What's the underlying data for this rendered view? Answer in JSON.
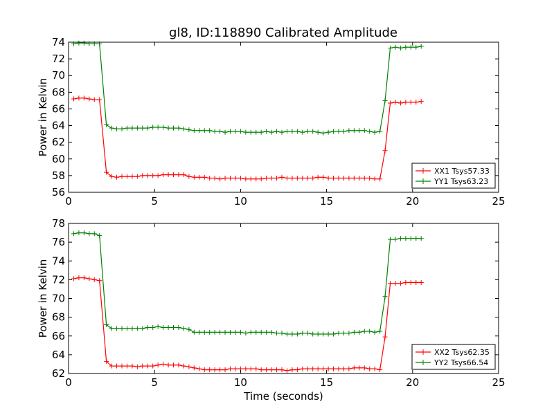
{
  "figure": {
    "title": "gl8, ID:118890 Calibrated Amplitude"
  },
  "chart_data": [
    {
      "type": "line",
      "title": "gl8, ID:118890 Calibrated Amplitude",
      "xlabel": "",
      "ylabel": "Power in Kelvin",
      "xlim": [
        0,
        25
      ],
      "ylim": [
        56,
        74
      ],
      "xticks": [
        0,
        5,
        10,
        15,
        20,
        25
      ],
      "yticks": [
        56,
        58,
        60,
        62,
        64,
        66,
        68,
        70,
        72,
        74
      ],
      "grid": false,
      "legend_position": "lower-right",
      "x": [
        0.3,
        0.6,
        0.9,
        1.2,
        1.5,
        1.8,
        2.2,
        2.5,
        2.8,
        3.1,
        3.4,
        3.7,
        4.0,
        4.3,
        4.6,
        4.9,
        5.2,
        5.5,
        5.8,
        6.1,
        6.4,
        6.7,
        7.0,
        7.3,
        7.6,
        7.9,
        8.2,
        8.5,
        8.8,
        9.1,
        9.4,
        9.7,
        10.0,
        10.3,
        10.6,
        10.9,
        11.2,
        11.5,
        11.8,
        12.1,
        12.4,
        12.7,
        13.0,
        13.3,
        13.6,
        13.9,
        14.2,
        14.5,
        14.8,
        15.1,
        15.4,
        15.7,
        16.0,
        16.3,
        16.6,
        16.9,
        17.2,
        17.5,
        17.8,
        18.1,
        18.4,
        18.7,
        19.0,
        19.3,
        19.6,
        19.9,
        20.2,
        20.5
      ],
      "series": [
        {
          "name": "XX1 Tsys57.33",
          "color": "#ff0000",
          "values": [
            67.2,
            67.3,
            67.3,
            67.2,
            67.1,
            67.1,
            58.4,
            57.9,
            57.8,
            57.9,
            57.9,
            57.9,
            57.9,
            58.0,
            58.0,
            58.0,
            58.0,
            58.1,
            58.1,
            58.1,
            58.1,
            58.1,
            57.9,
            57.8,
            57.8,
            57.8,
            57.7,
            57.7,
            57.6,
            57.7,
            57.7,
            57.7,
            57.7,
            57.6,
            57.6,
            57.6,
            57.6,
            57.7,
            57.7,
            57.7,
            57.8,
            57.7,
            57.7,
            57.7,
            57.7,
            57.7,
            57.7,
            57.8,
            57.8,
            57.7,
            57.7,
            57.7,
            57.7,
            57.7,
            57.7,
            57.7,
            57.7,
            57.7,
            57.6,
            57.6,
            61.0,
            66.7,
            66.8,
            66.7,
            66.8,
            66.8,
            66.8,
            66.9
          ]
        },
        {
          "name": "YY1 Tsys63.23",
          "color": "#008000",
          "values": [
            73.8,
            73.9,
            73.9,
            73.8,
            73.8,
            73.8,
            64.1,
            63.7,
            63.6,
            63.6,
            63.7,
            63.7,
            63.7,
            63.7,
            63.7,
            63.8,
            63.8,
            63.8,
            63.7,
            63.7,
            63.7,
            63.6,
            63.5,
            63.4,
            63.4,
            63.4,
            63.4,
            63.3,
            63.3,
            63.2,
            63.3,
            63.3,
            63.3,
            63.2,
            63.2,
            63.2,
            63.2,
            63.3,
            63.2,
            63.3,
            63.2,
            63.3,
            63.3,
            63.3,
            63.2,
            63.3,
            63.3,
            63.2,
            63.1,
            63.2,
            63.3,
            63.3,
            63.3,
            63.4,
            63.4,
            63.4,
            63.4,
            63.3,
            63.2,
            63.3,
            67.0,
            73.3,
            73.4,
            73.3,
            73.4,
            73.4,
            73.4,
            73.5
          ]
        }
      ]
    },
    {
      "type": "line",
      "title": "",
      "xlabel": "Time (seconds)",
      "ylabel": "Power in Kelvin",
      "xlim": [
        0,
        25
      ],
      "ylim": [
        62,
        78
      ],
      "xticks": [
        0,
        5,
        10,
        15,
        20,
        25
      ],
      "yticks": [
        62,
        64,
        66,
        68,
        70,
        72,
        74,
        76,
        78
      ],
      "grid": false,
      "legend_position": "lower-right",
      "x": [
        0.3,
        0.6,
        0.9,
        1.2,
        1.5,
        1.8,
        2.2,
        2.5,
        2.8,
        3.1,
        3.4,
        3.7,
        4.0,
        4.3,
        4.6,
        4.9,
        5.2,
        5.5,
        5.8,
        6.1,
        6.4,
        6.7,
        7.0,
        7.3,
        7.6,
        7.9,
        8.2,
        8.5,
        8.8,
        9.1,
        9.4,
        9.7,
        10.0,
        10.3,
        10.6,
        10.9,
        11.2,
        11.5,
        11.8,
        12.1,
        12.4,
        12.7,
        13.0,
        13.3,
        13.6,
        13.9,
        14.2,
        14.5,
        14.8,
        15.1,
        15.4,
        15.7,
        16.0,
        16.3,
        16.6,
        16.9,
        17.2,
        17.5,
        17.8,
        18.1,
        18.4,
        18.7,
        19.0,
        19.3,
        19.6,
        19.9,
        20.2,
        20.5
      ],
      "series": [
        {
          "name": "XX2 Tsys62.35",
          "color": "#ff0000",
          "values": [
            72.1,
            72.2,
            72.2,
            72.1,
            72.0,
            71.9,
            63.3,
            62.8,
            62.8,
            62.8,
            62.8,
            62.8,
            62.7,
            62.8,
            62.8,
            62.8,
            62.9,
            63.0,
            62.9,
            62.9,
            62.9,
            62.8,
            62.7,
            62.6,
            62.5,
            62.4,
            62.4,
            62.4,
            62.4,
            62.4,
            62.5,
            62.5,
            62.5,
            62.5,
            62.5,
            62.5,
            62.4,
            62.4,
            62.4,
            62.4,
            62.4,
            62.3,
            62.4,
            62.4,
            62.5,
            62.5,
            62.5,
            62.5,
            62.5,
            62.5,
            62.5,
            62.5,
            62.5,
            62.5,
            62.6,
            62.6,
            62.6,
            62.5,
            62.5,
            62.4,
            65.9,
            71.6,
            71.6,
            71.6,
            71.7,
            71.7,
            71.7,
            71.7
          ]
        },
        {
          "name": "YY2 Tsys66.54",
          "color": "#008000",
          "values": [
            76.9,
            77.0,
            77.0,
            76.9,
            76.9,
            76.7,
            67.2,
            66.8,
            66.8,
            66.8,
            66.8,
            66.8,
            66.8,
            66.8,
            66.9,
            66.9,
            67.0,
            66.9,
            66.9,
            66.9,
            66.9,
            66.8,
            66.7,
            66.4,
            66.4,
            66.4,
            66.4,
            66.4,
            66.4,
            66.4,
            66.4,
            66.4,
            66.4,
            66.3,
            66.4,
            66.4,
            66.4,
            66.4,
            66.4,
            66.3,
            66.3,
            66.2,
            66.2,
            66.2,
            66.3,
            66.3,
            66.2,
            66.2,
            66.2,
            66.2,
            66.2,
            66.3,
            66.3,
            66.3,
            66.4,
            66.4,
            66.5,
            66.5,
            66.4,
            66.5,
            70.2,
            76.3,
            76.3,
            76.4,
            76.4,
            76.4,
            76.4,
            76.4
          ]
        }
      ]
    }
  ]
}
